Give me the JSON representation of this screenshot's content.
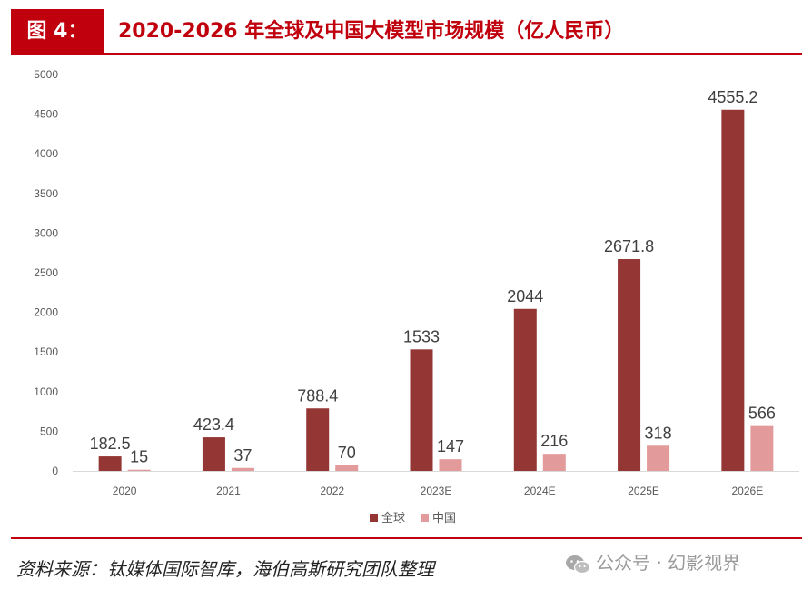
{
  "header": {
    "figure_label": "图 4：",
    "title": "2020-2026 年全球及中国大模型市场规模（亿人民币）"
  },
  "chart_data": {
    "type": "bar",
    "categories": [
      "2020",
      "2021",
      "2022",
      "2023E",
      "2024E",
      "2025E",
      "2026E"
    ],
    "series": [
      {
        "name": "全球",
        "color": "#943634",
        "values": [
          182.5,
          423.4,
          788.4,
          1533,
          2044,
          2671.8,
          4555.2
        ]
      },
      {
        "name": "中国",
        "color": "#e39a9b",
        "values": [
          15,
          37,
          70,
          147,
          216,
          318,
          566
        ]
      }
    ],
    "data_labels": [
      [
        "182.5",
        "423.4",
        "788.4",
        "1533",
        "2044",
        "2671.8",
        "4555.2"
      ],
      [
        "15",
        "37",
        "70",
        "147",
        "216",
        "318",
        "566"
      ]
    ],
    "ylim": [
      0,
      5000
    ],
    "yticks": [
      0,
      500,
      1000,
      1500,
      2000,
      2500,
      3000,
      3500,
      4000,
      4500,
      5000
    ],
    "grid": false,
    "legend": "bottom-center",
    "title": "",
    "xlabel": "",
    "ylabel": ""
  },
  "footer": {
    "source": "资料来源：钛媒体国际智库，海伯高斯研究团队整理",
    "watermark": "公众号 · 幻影视界",
    "watermark_icon": "wechat-icon"
  }
}
